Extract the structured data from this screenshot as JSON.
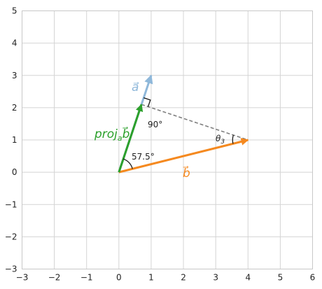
{
  "chart_data": {
    "type": "vector-plot",
    "xlim": [
      -3,
      6
    ],
    "ylim": [
      -3,
      5
    ],
    "x_ticks": [
      "−3",
      "−2",
      "−1",
      "0",
      "1",
      "2",
      "3",
      "4",
      "5",
      "6"
    ],
    "y_ticks": [
      "5",
      "4",
      "3",
      "2",
      "1",
      "0",
      "−1",
      "−2",
      "−3"
    ],
    "grid": true,
    "vectors": [
      {
        "label": "a⃗",
        "from": [
          0,
          0
        ],
        "to": [
          1,
          3
        ],
        "color": "#8fb8da"
      },
      {
        "label": "b⃗",
        "from": [
          0,
          0
        ],
        "to": [
          4,
          1
        ],
        "color": "#f5891f"
      },
      {
        "label": "projab⃗",
        "label_main": "proj",
        "label_sub": "a",
        "label_tail": "b⃗",
        "from": [
          0,
          0
        ],
        "to": [
          0.7,
          2.1
        ],
        "color": "#2ca02c"
      }
    ],
    "dashed_line": {
      "from": [
        0.7,
        2.1
      ],
      "to": [
        4,
        1
      ],
      "color": "#808080"
    },
    "annotations": {
      "angle_between": "57.5°",
      "right_angle": "90°",
      "theta": "θ",
      "theta_sub": "3"
    }
  }
}
